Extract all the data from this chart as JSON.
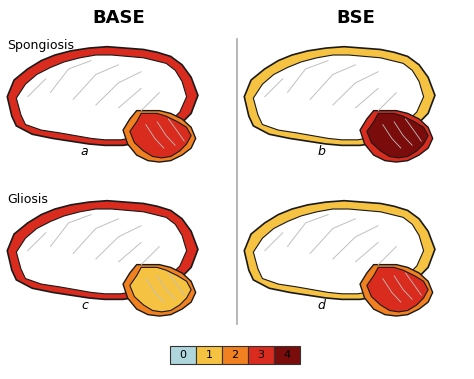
{
  "title_left": "BASE",
  "title_right": "BSE",
  "label_top_left": "Spongiosis",
  "label_bottom_left": "Gliosis",
  "panel_labels": [
    "a",
    "b",
    "c",
    "d"
  ],
  "colorbar_values": [
    "0",
    "1",
    "2",
    "3",
    "4"
  ],
  "colors": {
    "level0": "#aed6dc",
    "level1": "#f5c242",
    "level2": "#f08020",
    "level3": "#d92b1e",
    "level4": "#7a0c0c",
    "outline": "#1a1a1a",
    "white": "#ffffff",
    "gyri_line": "#c0c0c0",
    "divider": "#aaaaaa"
  },
  "background": "#ffffff"
}
